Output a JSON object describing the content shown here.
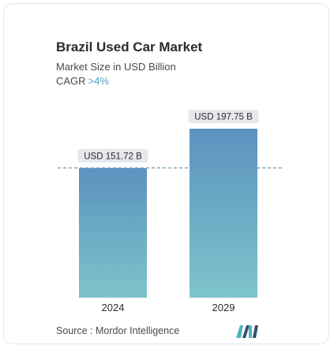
{
  "header": {
    "title": "Brazil Used Car Market",
    "subtitle": "Market Size in USD Billion",
    "cagr_label": "CAGR",
    "cagr_value": ">4%"
  },
  "source": "Source : Mordor Intelligence",
  "colors": {
    "bar_top": "#5b93bf",
    "bar_bottom": "#7ec4cb",
    "label_bg": "#e6e8eb",
    "dashed_line": "#4a7fa6",
    "cagr_accent": "#4f9fc4",
    "logo_dark": "#2f4f6e",
    "logo_teal": "#4fb3c3"
  },
  "chart_data": {
    "type": "bar",
    "title": "Brazil Used Car Market",
    "subtitle": "Market Size in USD Billion",
    "categories": [
      "2024",
      "2029"
    ],
    "values": [
      151.72,
      197.75
    ],
    "data_labels": [
      "USD 151.72 B",
      "USD 197.75 B"
    ],
    "ylim": [
      0,
      197.75
    ],
    "grid": false,
    "legend": "none",
    "reference_line": "dashed line at first bar value"
  }
}
